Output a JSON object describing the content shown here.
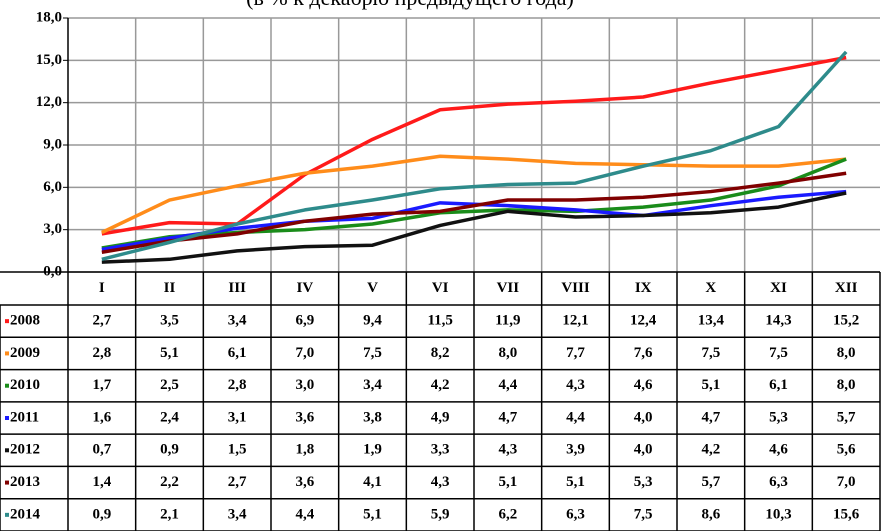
{
  "chart_data": {
    "type": "line",
    "subtitle": "(в % к декабрю предыдущего года)",
    "categories": [
      "I",
      "II",
      "III",
      "IV",
      "V",
      "VI",
      "VII",
      "VIII",
      "IX",
      "X",
      "XI",
      "XII"
    ],
    "ylim": [
      0,
      18
    ],
    "yticks": [
      {
        "value": 0,
        "label": "0,0"
      },
      {
        "value": 3,
        "label": "3,0"
      },
      {
        "value": 6,
        "label": "6,0"
      },
      {
        "value": 9,
        "label": "9,0"
      },
      {
        "value": 12,
        "label": "12,0"
      },
      {
        "value": 15,
        "label": "15,0"
      },
      {
        "value": 18,
        "label": "18,0"
      }
    ],
    "grid": true,
    "series": [
      {
        "name": "2008",
        "color": "#ff1a1a",
        "values": [
          2.7,
          3.5,
          3.4,
          6.9,
          9.4,
          11.5,
          11.9,
          12.1,
          12.4,
          13.4,
          14.3,
          15.2
        ],
        "value_labels": [
          "2,7",
          "3,5",
          "3,4",
          "6,9",
          "9,4",
          "11,5",
          "11,9",
          "12,1",
          "12,4",
          "13,4",
          "14,3",
          "15,2"
        ]
      },
      {
        "name": "2009",
        "color": "#ff8c1a",
        "values": [
          2.8,
          5.1,
          6.1,
          7.0,
          7.5,
          8.2,
          8.0,
          7.7,
          7.6,
          7.5,
          7.5,
          8.0
        ],
        "value_labels": [
          "2,8",
          "5,1",
          "6,1",
          "7,0",
          "7,5",
          "8,2",
          "8,0",
          "7,7",
          "7,6",
          "7,5",
          "7,5",
          "8,0"
        ]
      },
      {
        "name": "2010",
        "color": "#1a8c1a",
        "values": [
          1.7,
          2.5,
          2.8,
          3.0,
          3.4,
          4.2,
          4.4,
          4.3,
          4.6,
          5.1,
          6.1,
          8.0
        ],
        "value_labels": [
          "1,7",
          "2,5",
          "2,8",
          "3,0",
          "3,4",
          "4,2",
          "4,4",
          "4,3",
          "4,6",
          "5,1",
          "6,1",
          "8,0"
        ]
      },
      {
        "name": "2011",
        "color": "#1a1aff",
        "values": [
          1.6,
          2.4,
          3.1,
          3.6,
          3.8,
          4.9,
          4.7,
          4.4,
          4.0,
          4.7,
          5.3,
          5.7
        ],
        "value_labels": [
          "1,6",
          "2,4",
          "3,1",
          "3,6",
          "3,8",
          "4,9",
          "4,7",
          "4,4",
          "4,0",
          "4,7",
          "5,3",
          "5,7"
        ]
      },
      {
        "name": "2012",
        "color": "#111111",
        "values": [
          0.7,
          0.9,
          1.5,
          1.8,
          1.9,
          3.3,
          4.3,
          3.9,
          4.0,
          4.2,
          4.6,
          5.6
        ],
        "value_labels": [
          "0,7",
          "0,9",
          "1,5",
          "1,8",
          "1,9",
          "3,3",
          "4,3",
          "3,9",
          "4,0",
          "4,2",
          "4,6",
          "5,6"
        ]
      },
      {
        "name": "2013",
        "color": "#800000",
        "values": [
          1.4,
          2.2,
          2.7,
          3.6,
          4.1,
          4.3,
          5.1,
          5.1,
          5.3,
          5.7,
          6.3,
          7.0
        ],
        "value_labels": [
          "1,4",
          "2,2",
          "2,7",
          "3,6",
          "4,1",
          "4,3",
          "5,1",
          "5,1",
          "5,3",
          "5,7",
          "6,3",
          "7,0"
        ]
      },
      {
        "name": "2014",
        "color": "#2e8b8b",
        "values": [
          0.9,
          2.1,
          3.4,
          4.4,
          5.1,
          5.9,
          6.2,
          6.3,
          7.5,
          8.6,
          10.3,
          15.6
        ],
        "value_labels": [
          "0,9",
          "2,1",
          "3,4",
          "4,4",
          "5,1",
          "5,9",
          "6,2",
          "6,3",
          "7,5",
          "8,6",
          "10,3",
          "15,6"
        ]
      }
    ]
  }
}
